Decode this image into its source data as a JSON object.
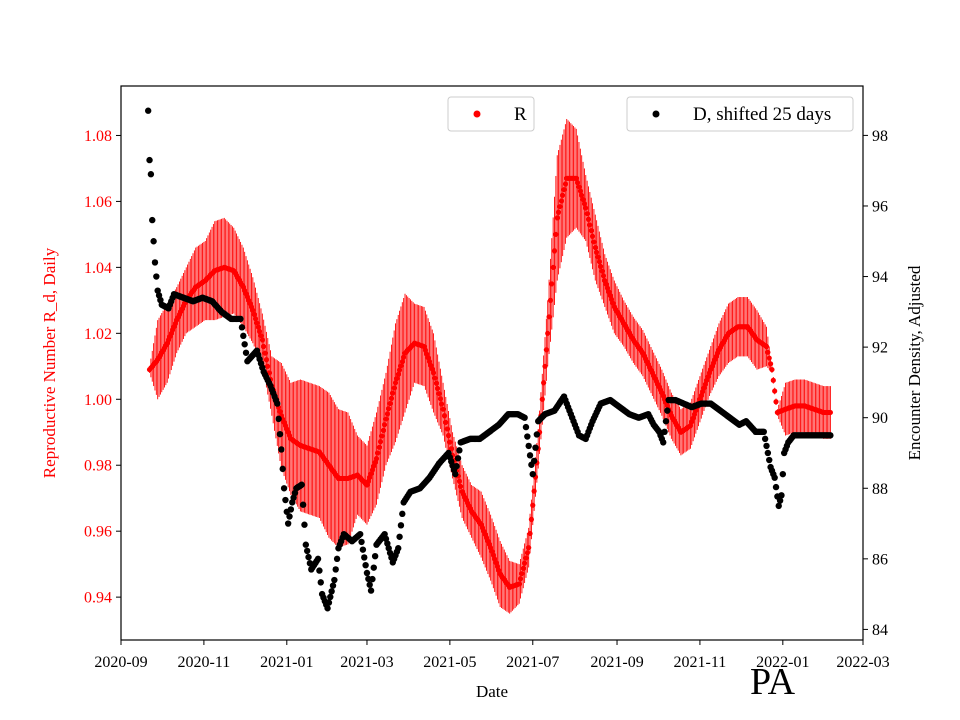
{
  "chart_data": {
    "type": "scatter",
    "state_label": "PA",
    "xlabel": "Date",
    "ylabel_left": "Reproductive Number R_d, Daily",
    "ylabel_right": "Encounter Density, Adjusted",
    "x_range": [
      "2020-09-01",
      "2022-03-01"
    ],
    "ylim_left": [
      0.927,
      1.095
    ],
    "ylim_right": [
      83.7,
      99.4
    ],
    "x_ticks": [
      "2020-09",
      "2020-11",
      "2021-01",
      "2021-03",
      "2021-05",
      "2021-07",
      "2021-09",
      "2021-11",
      "2022-01",
      "2022-03"
    ],
    "y_ticks_left": [
      "0.94",
      "0.96",
      "0.98",
      "1.00",
      "1.02",
      "1.04",
      "1.06",
      "1.08"
    ],
    "y_ticks_right": [
      "84",
      "86",
      "88",
      "90",
      "92",
      "94",
      "96",
      "98"
    ],
    "colors": {
      "R": "#ff0000",
      "D": "#000000"
    },
    "legend_R": "R",
    "legend_D": "D, shifted 25 days",
    "series": [
      {
        "name": "R",
        "axis": "left",
        "marker": "dot-with-errorbars",
        "points": [
          [
            "2020-09-22",
            1.009
          ],
          [
            "2020-09-28",
            1.012
          ],
          [
            "2020-10-05",
            1.017
          ],
          [
            "2020-10-12",
            1.024
          ],
          [
            "2020-10-19",
            1.03
          ],
          [
            "2020-10-26",
            1.034
          ],
          [
            "2020-11-02",
            1.036
          ],
          [
            "2020-11-09",
            1.039
          ],
          [
            "2020-11-16",
            1.04
          ],
          [
            "2020-11-23",
            1.039
          ],
          [
            "2020-11-30",
            1.034
          ],
          [
            "2020-12-07",
            1.027
          ],
          [
            "2020-12-14",
            1.018
          ],
          [
            "2020-12-21",
            1.004
          ],
          [
            "2020-12-28",
            0.995
          ],
          [
            "2021-01-04",
            0.988
          ],
          [
            "2021-01-11",
            0.986
          ],
          [
            "2021-01-18",
            0.985
          ],
          [
            "2021-01-25",
            0.984
          ],
          [
            "2021-02-01",
            0.98
          ],
          [
            "2021-02-08",
            0.976
          ],
          [
            "2021-02-15",
            0.976
          ],
          [
            "2021-02-22",
            0.977
          ],
          [
            "2021-03-01",
            0.974
          ],
          [
            "2021-03-08",
            0.982
          ],
          [
            "2021-03-15",
            0.994
          ],
          [
            "2021-03-22",
            1.005
          ],
          [
            "2021-03-29",
            1.014
          ],
          [
            "2021-04-05",
            1.017
          ],
          [
            "2021-04-12",
            1.016
          ],
          [
            "2021-04-19",
            1.008
          ],
          [
            "2021-04-26",
            0.997
          ],
          [
            "2021-05-03",
            0.983
          ],
          [
            "2021-05-10",
            0.972
          ],
          [
            "2021-05-17",
            0.966
          ],
          [
            "2021-05-24",
            0.962
          ],
          [
            "2021-05-31",
            0.955
          ],
          [
            "2021-06-07",
            0.947
          ],
          [
            "2021-06-14",
            0.943
          ],
          [
            "2021-06-21",
            0.944
          ],
          [
            "2021-06-28",
            0.955
          ],
          [
            "2021-07-05",
            0.985
          ],
          [
            "2021-07-12",
            1.02
          ],
          [
            "2021-07-19",
            1.055
          ],
          [
            "2021-07-26",
            1.067
          ],
          [
            "2021-08-02",
            1.067
          ],
          [
            "2021-08-09",
            1.058
          ],
          [
            "2021-08-16",
            1.046
          ],
          [
            "2021-08-23",
            1.036
          ],
          [
            "2021-08-30",
            1.028
          ],
          [
            "2021-09-06",
            1.023
          ],
          [
            "2021-09-13",
            1.018
          ],
          [
            "2021-09-20",
            1.014
          ],
          [
            "2021-09-27",
            1.008
          ],
          [
            "2021-10-04",
            1.002
          ],
          [
            "2021-10-11",
            0.995
          ],
          [
            "2021-10-18",
            0.99
          ],
          [
            "2021-10-25",
            0.992
          ],
          [
            "2021-11-01",
            1.0
          ],
          [
            "2021-11-08",
            1.008
          ],
          [
            "2021-11-15",
            1.015
          ],
          [
            "2021-11-22",
            1.02
          ],
          [
            "2021-11-29",
            1.022
          ],
          [
            "2021-12-06",
            1.022
          ],
          [
            "2021-12-13",
            1.018
          ],
          [
            "2021-12-20",
            1.016
          ],
          [
            "2021-12-24",
            1.009
          ],
          [
            "2021-12-28",
            0.996
          ],
          [
            "2022-01-03",
            0.997
          ],
          [
            "2022-01-10",
            0.998
          ],
          [
            "2022-01-17",
            0.998
          ],
          [
            "2022-01-24",
            0.997
          ],
          [
            "2022-01-31",
            0.996
          ],
          [
            "2022-02-05",
            0.996
          ]
        ],
        "errors": [
          0.001,
          0.012,
          0.012,
          0.01,
          0.01,
          0.012,
          0.012,
          0.015,
          0.015,
          0.013,
          0.012,
          0.01,
          0.008,
          0.009,
          0.016,
          0.017,
          0.02,
          0.02,
          0.02,
          0.022,
          0.021,
          0.02,
          0.012,
          0.012,
          0.014,
          0.014,
          0.018,
          0.018,
          0.012,
          0.012,
          0.012,
          0.008,
          0.007,
          0.008,
          0.008,
          0.01,
          0.01,
          0.01,
          0.008,
          0.006,
          0.006,
          0.006,
          0.01,
          0.019,
          0.018,
          0.015,
          0.01,
          0.01,
          0.008,
          0.008,
          0.007,
          0.007,
          0.007,
          0.007,
          0.007,
          0.007,
          0.007,
          0.007,
          0.007,
          0.007,
          0.008,
          0.009,
          0.009,
          0.009,
          0.009,
          0.006,
          0.001,
          0.001,
          0.008,
          0.008,
          0.008,
          0.008,
          0.008,
          0.008
        ]
      },
      {
        "name": "D, shifted 25 days",
        "axis": "right",
        "marker": "dot",
        "points": [
          [
            "2020-09-21",
            98.7
          ],
          [
            "2020-09-22",
            97.3
          ],
          [
            "2020-09-23",
            96.9
          ],
          [
            "2020-09-24",
            95.6
          ],
          [
            "2020-09-26",
            94.4
          ],
          [
            "2020-09-28",
            93.6
          ],
          [
            "2020-10-01",
            93.2
          ],
          [
            "2020-10-06",
            93.1
          ],
          [
            "2020-10-10",
            93.5
          ],
          [
            "2020-10-17",
            93.4
          ],
          [
            "2020-10-24",
            93.3
          ],
          [
            "2020-10-31",
            93.4
          ],
          [
            "2020-11-07",
            93.3
          ],
          [
            "2020-11-14",
            93.0
          ],
          [
            "2020-11-21",
            92.8
          ],
          [
            "2020-11-28",
            92.8
          ],
          [
            "2020-12-03",
            91.6
          ],
          [
            "2020-12-10",
            91.9
          ],
          [
            "2020-12-15",
            91.3
          ],
          [
            "2020-12-20",
            90.9
          ],
          [
            "2020-12-25",
            90.4
          ],
          [
            "2020-12-28",
            89.1
          ],
          [
            "2020-12-30",
            88.0
          ],
          [
            "2021-01-02",
            87.0
          ],
          [
            "2021-01-05",
            87.6
          ],
          [
            "2021-01-08",
            88.0
          ],
          [
            "2021-01-12",
            88.1
          ],
          [
            "2021-01-15",
            86.4
          ],
          [
            "2021-01-19",
            85.7
          ],
          [
            "2021-01-24",
            86.0
          ],
          [
            "2021-01-27",
            85.0
          ],
          [
            "2021-01-31",
            84.6
          ],
          [
            "2021-02-05",
            85.4
          ],
          [
            "2021-02-08",
            86.3
          ],
          [
            "2021-02-12",
            86.7
          ],
          [
            "2021-02-18",
            86.5
          ],
          [
            "2021-02-24",
            86.7
          ],
          [
            "2021-03-01",
            85.6
          ],
          [
            "2021-03-04",
            85.1
          ],
          [
            "2021-03-08",
            86.4
          ],
          [
            "2021-03-14",
            86.7
          ],
          [
            "2021-03-20",
            85.9
          ],
          [
            "2021-03-24",
            86.3
          ],
          [
            "2021-03-28",
            87.6
          ],
          [
            "2021-04-02",
            87.9
          ],
          [
            "2021-04-09",
            88.0
          ],
          [
            "2021-04-16",
            88.3
          ],
          [
            "2021-04-23",
            88.7
          ],
          [
            "2021-04-30",
            89.0
          ],
          [
            "2021-05-05",
            88.4
          ],
          [
            "2021-05-09",
            89.3
          ],
          [
            "2021-05-16",
            89.4
          ],
          [
            "2021-05-23",
            89.4
          ],
          [
            "2021-05-30",
            89.6
          ],
          [
            "2021-06-06",
            89.8
          ],
          [
            "2021-06-13",
            90.1
          ],
          [
            "2021-06-20",
            90.1
          ],
          [
            "2021-06-25",
            90.0
          ],
          [
            "2021-06-28",
            89.2
          ],
          [
            "2021-07-01",
            88.4
          ],
          [
            "2021-07-05",
            89.9
          ],
          [
            "2021-07-10",
            90.1
          ],
          [
            "2021-07-17",
            90.2
          ],
          [
            "2021-07-24",
            90.6
          ],
          [
            "2021-07-27",
            90.3
          ],
          [
            "2021-08-01",
            89.8
          ],
          [
            "2021-08-04",
            89.5
          ],
          [
            "2021-08-09",
            89.4
          ],
          [
            "2021-08-14",
            89.9
          ],
          [
            "2021-08-20",
            90.4
          ],
          [
            "2021-08-27",
            90.5
          ],
          [
            "2021-09-03",
            90.3
          ],
          [
            "2021-09-10",
            90.1
          ],
          [
            "2021-09-17",
            90.0
          ],
          [
            "2021-09-24",
            90.1
          ],
          [
            "2021-09-28",
            89.8
          ],
          [
            "2021-10-02",
            89.6
          ],
          [
            "2021-10-05",
            89.3
          ],
          [
            "2021-10-09",
            90.5
          ],
          [
            "2021-10-14",
            90.5
          ],
          [
            "2021-10-20",
            90.4
          ],
          [
            "2021-10-26",
            90.3
          ],
          [
            "2021-11-02",
            90.4
          ],
          [
            "2021-11-09",
            90.4
          ],
          [
            "2021-11-16",
            90.2
          ],
          [
            "2021-11-23",
            90.0
          ],
          [
            "2021-11-30",
            89.8
          ],
          [
            "2021-12-05",
            89.9
          ],
          [
            "2021-12-12",
            89.6
          ],
          [
            "2021-12-18",
            89.6
          ],
          [
            "2021-12-23",
            88.6
          ],
          [
            "2021-12-26",
            88.3
          ],
          [
            "2021-12-29",
            87.5
          ],
          [
            "2021-12-31",
            87.8
          ],
          [
            "2022-01-02",
            89.0
          ],
          [
            "2022-01-05",
            89.3
          ],
          [
            "2022-01-09",
            89.5
          ],
          [
            "2022-01-16",
            89.5
          ],
          [
            "2022-01-23",
            89.5
          ],
          [
            "2022-01-30",
            89.5
          ],
          [
            "2022-02-05",
            89.5
          ]
        ]
      }
    ]
  }
}
